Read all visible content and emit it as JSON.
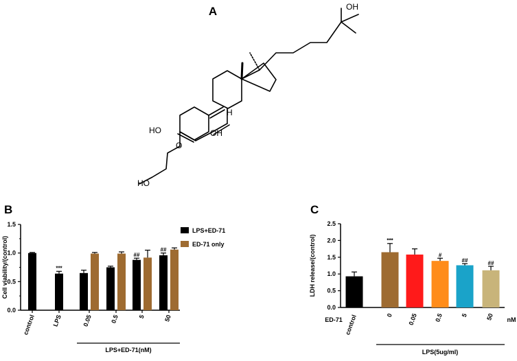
{
  "panel_labels": {
    "a": "A",
    "b": "B",
    "c": "C"
  },
  "structure": {
    "atom_labels": {
      "oh_side_chain": "OH",
      "h_ring_junction": "H",
      "ho_ring": "HO",
      "oh_ring": "OH",
      "o_ether": "O",
      "ho_terminal": "HO"
    }
  },
  "chart_data": [
    {
      "panel": "B",
      "type": "bar",
      "ylabel": "Cell viability/(control)",
      "ylim": [
        0,
        1.5
      ],
      "yticks": [
        "0.0",
        "0.5",
        "1.0",
        "1.5"
      ],
      "categories": [
        "control",
        "LPS",
        "0.05",
        "0.5",
        "5",
        "50"
      ],
      "group_label": "LPS+ED-71(nM)",
      "legend_position": "top-right",
      "series": [
        {
          "name": "LPS+ED-71",
          "color": "#000000",
          "values": [
            1.0,
            0.64,
            0.65,
            0.75,
            0.88,
            0.96
          ],
          "errors": [
            0.01,
            0.04,
            0.05,
            0.02,
            0.03,
            0.04
          ],
          "annotations": [
            "",
            "***",
            "",
            "",
            "##",
            "##"
          ]
        },
        {
          "name": "ED-71 only",
          "color": "#9e6b31",
          "values": [
            null,
            null,
            0.99,
            0.99,
            0.92,
            1.06
          ],
          "errors": [
            null,
            null,
            0.02,
            0.03,
            0.13,
            0.03
          ],
          "annotations": [
            "",
            "",
            "",
            "",
            "",
            ""
          ]
        }
      ]
    },
    {
      "panel": "C",
      "type": "bar",
      "ylabel": "LDH release/(control)",
      "ylim": [
        0,
        2.5
      ],
      "yticks": [
        "0.0",
        "0.5",
        "1.0",
        "1.5",
        "2.0",
        "2.5"
      ],
      "row_label": "ED-71",
      "unit_label": "nM",
      "categories": [
        "control",
        "0",
        "0.05",
        "0.5",
        "5",
        "50"
      ],
      "group_label": "LPS(5ug/ml)",
      "values": [
        0.93,
        1.65,
        1.58,
        1.39,
        1.26,
        1.11
      ],
      "errors": [
        0.13,
        0.26,
        0.17,
        0.08,
        0.05,
        0.12
      ],
      "colors": [
        "#000000",
        "#9e6b31",
        "#ff1a1a",
        "#ff8c1a",
        "#1aa3c9",
        "#c8b47a"
      ],
      "annotations": [
        "",
        "***",
        "",
        "#",
        "##",
        "##"
      ]
    }
  ]
}
